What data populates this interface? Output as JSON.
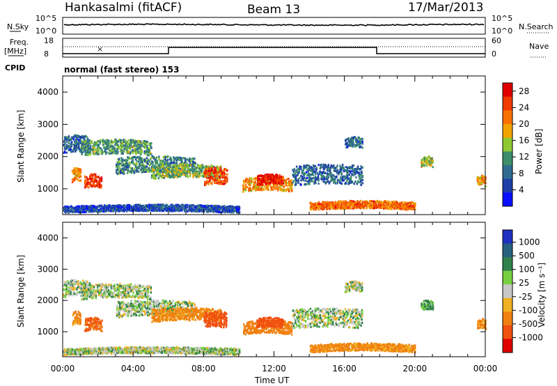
{
  "header": {
    "station": "Hankasalmi (fitACF)",
    "beam": "Beam 13",
    "date": "17/Mar/2013"
  },
  "strips": {
    "nsky_label": "N.Sky",
    "nsearch_label": "N.Search",
    "nsky_ticks": [
      "10^5",
      "10^0"
    ],
    "nsearch_ticks": [
      "10^5",
      "10^0"
    ],
    "freq_label_1": "Freq.",
    "freq_label_2": "[MHz]",
    "freq_ticks": [
      "18",
      "8"
    ],
    "nave_label": "Nave",
    "nave_ticks": [
      "60",
      "0"
    ],
    "cpid_label": "CPID",
    "cpid_text": "normal (fast stereo) 153"
  },
  "colors": {
    "power_scale": [
      "#0a10ff",
      "#1f3fa8",
      "#2f6b8e",
      "#3c8f6a",
      "#8fc832",
      "#f2a300",
      "#f77000",
      "#f03a00",
      "#e00000"
    ],
    "velocity_scale": [
      "#2030c0",
      "#286080",
      "#30804a",
      "#78d040",
      "#c8c8c8",
      "#f0b020",
      "#f08010",
      "#f05010",
      "#e00000"
    ]
  },
  "chart_data": [
    {
      "type": "heatmap",
      "name": "power",
      "ylabel": "Slant Range [km]",
      "xlabel": "Time UT",
      "x_ticks": [
        "00:00",
        "04:00",
        "08:00",
        "12:00",
        "16:00",
        "20:00",
        "00:00"
      ],
      "xlim_hours": [
        0,
        24
      ],
      "ylim_km": [
        200,
        4500
      ],
      "y_ticks": [
        1000,
        2000,
        3000,
        4000
      ],
      "colorbar": {
        "label": "Power [dB]",
        "ticks": [
          4,
          8,
          12,
          16,
          20,
          24,
          28
        ],
        "range": [
          0,
          30
        ]
      }
    },
    {
      "type": "heatmap",
      "name": "velocity",
      "ylabel": "Slant Range [km]",
      "xlabel": "Time UT",
      "x_ticks": [
        "00:00",
        "04:00",
        "08:00",
        "12:00",
        "16:00",
        "20:00",
        "00:00"
      ],
      "xlim_hours": [
        0,
        24
      ],
      "ylim_km": [
        200,
        4500
      ],
      "y_ticks": [
        1000,
        2000,
        3000,
        4000
      ],
      "colorbar": {
        "label": "Velocity [m s⁻¹]",
        "ticks": [
          1000,
          500,
          100,
          25,
          -25,
          -100,
          -500,
          -1000
        ]
      }
    }
  ],
  "scatter_features": {
    "_summary": "approximate backscatter regions in data units (hours UT, km)",
    "bands": [
      {
        "t0": 0.0,
        "t1": 1.5,
        "r_center": 2350,
        "r_half": 260,
        "p": 8,
        "v": 25
      },
      {
        "t0": 1.0,
        "t1": 5.0,
        "r_center": 2250,
        "r_half": 220,
        "p": 12,
        "v": 25
      },
      {
        "t0": 3.0,
        "t1": 7.5,
        "r_center": 1700,
        "r_half": 250,
        "p": 10,
        "v": 25
      },
      {
        "t0": 5.0,
        "t1": 9.0,
        "r_center": 1500,
        "r_half": 200,
        "p": 14,
        "v": -100
      },
      {
        "t0": 1.2,
        "t1": 2.2,
        "r_center": 1200,
        "r_half": 200,
        "p": 26,
        "v": -300
      },
      {
        "t0": 0.5,
        "t1": 1.0,
        "r_center": 1400,
        "r_half": 200,
        "p": 20,
        "v": -100
      },
      {
        "t0": 8.0,
        "t1": 9.3,
        "r_center": 1350,
        "r_half": 250,
        "p": 24,
        "v": -500
      },
      {
        "t0": 10.2,
        "t1": 13.0,
        "r_center": 1100,
        "r_half": 200,
        "p": 20,
        "v": -200
      },
      {
        "t0": 11.0,
        "t1": 12.5,
        "r_center": 1250,
        "r_half": 150,
        "p": 28,
        "v": -500
      },
      {
        "t0": 13.0,
        "t1": 17.0,
        "r_center": 1400,
        "r_half": 300,
        "p": 8,
        "v": 25
      },
      {
        "t0": 16.0,
        "t1": 17.0,
        "r_center": 2400,
        "r_half": 150,
        "p": 8,
        "v": 25
      },
      {
        "t0": 14.0,
        "t1": 20.0,
        "r_center": 450,
        "r_half": 120,
        "p": 22,
        "v": -100
      },
      {
        "t0": 20.3,
        "t1": 21.0,
        "r_center": 1800,
        "r_half": 150,
        "p": 16,
        "v": 100
      },
      {
        "t0": 23.5,
        "t1": 24.0,
        "r_center": 1200,
        "r_half": 150,
        "p": 20,
        "v": -100
      },
      {
        "t0": 0.0,
        "t1": 10.0,
        "r_center": 350,
        "r_half": 100,
        "p": 6,
        "v": 25
      }
    ]
  }
}
